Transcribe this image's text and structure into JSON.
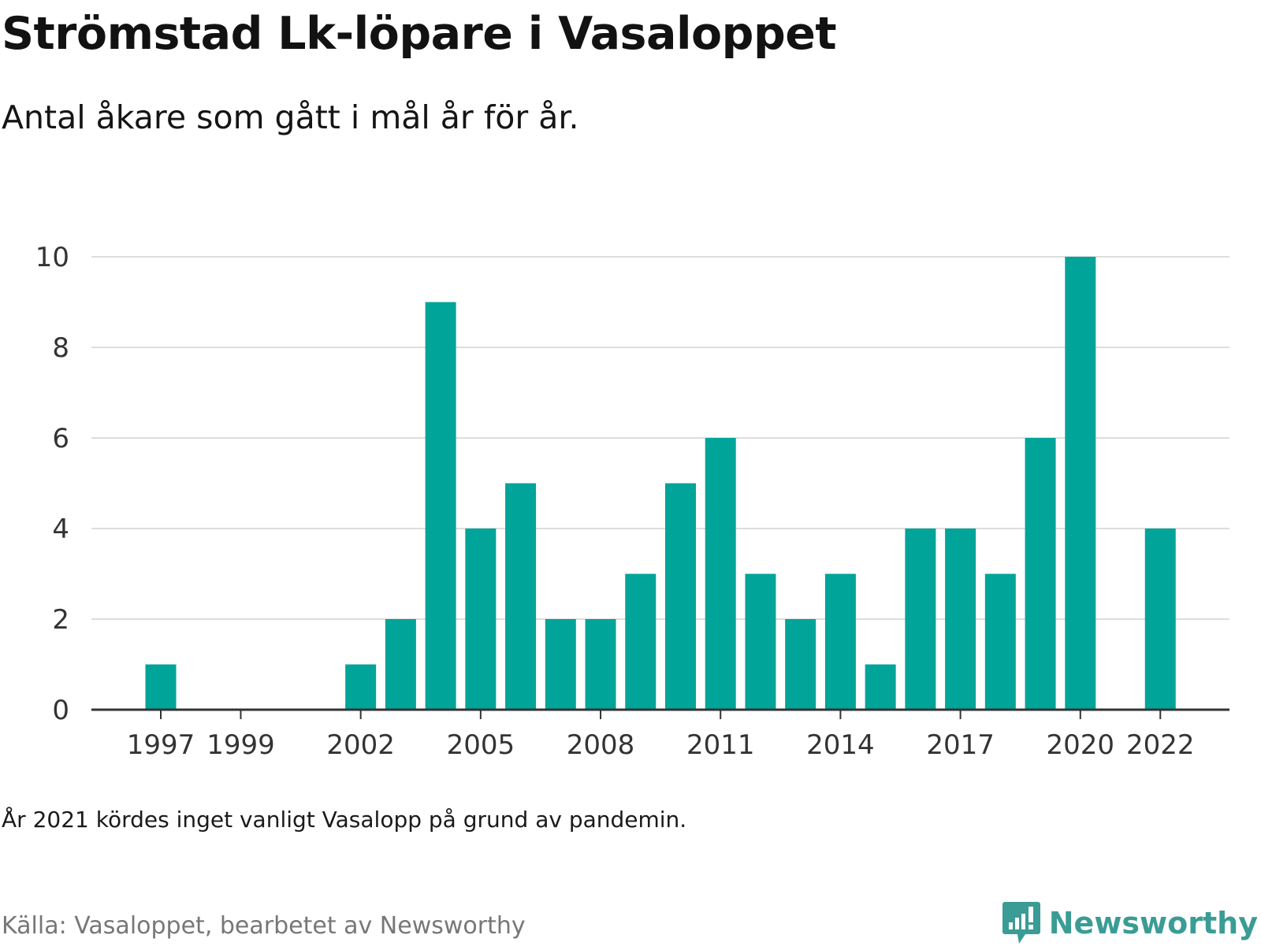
{
  "header": {
    "title": "Strömstad Lk-löpare i Vasaloppet",
    "subtitle": "Antal åkare som gått i mål år för år."
  },
  "footer": {
    "note": "År 2021 kördes inget vanligt Vasalopp på grund av pandemin.",
    "source": "Källa: Vasaloppet, bearbetet av Newsworthy",
    "logo_text": "Newsworthy",
    "logo_icon": "bar-chart-exclamation-icon"
  },
  "colors": {
    "bar": "#00a499",
    "grid": "#dddddd",
    "axis": "#333333",
    "logo": "#3a9c95"
  },
  "chart_data": {
    "type": "bar",
    "title": "Strömstad Lk-löpare i Vasaloppet",
    "subtitle": "Antal åkare som gått i mål år för år.",
    "xlabel": "",
    "ylabel": "",
    "x": [
      1997,
      1998,
      1999,
      2000,
      2001,
      2002,
      2003,
      2004,
      2005,
      2006,
      2007,
      2008,
      2009,
      2010,
      2011,
      2012,
      2013,
      2014,
      2015,
      2016,
      2017,
      2018,
      2019,
      2020,
      2021,
      2022
    ],
    "values": [
      1,
      0,
      0,
      0,
      0,
      1,
      2,
      9,
      4,
      5,
      2,
      2,
      3,
      5,
      6,
      3,
      2,
      3,
      1,
      4,
      4,
      3,
      6,
      10,
      null,
      4
    ],
    "x_tick_labels": [
      "1997",
      "1999",
      "2002",
      "2005",
      "2008",
      "2011",
      "2014",
      "2017",
      "2020",
      "2022"
    ],
    "y_ticks": [
      0,
      2,
      4,
      6,
      8,
      10
    ],
    "ylim": [
      0,
      10
    ],
    "grid": true,
    "legend": "none"
  }
}
